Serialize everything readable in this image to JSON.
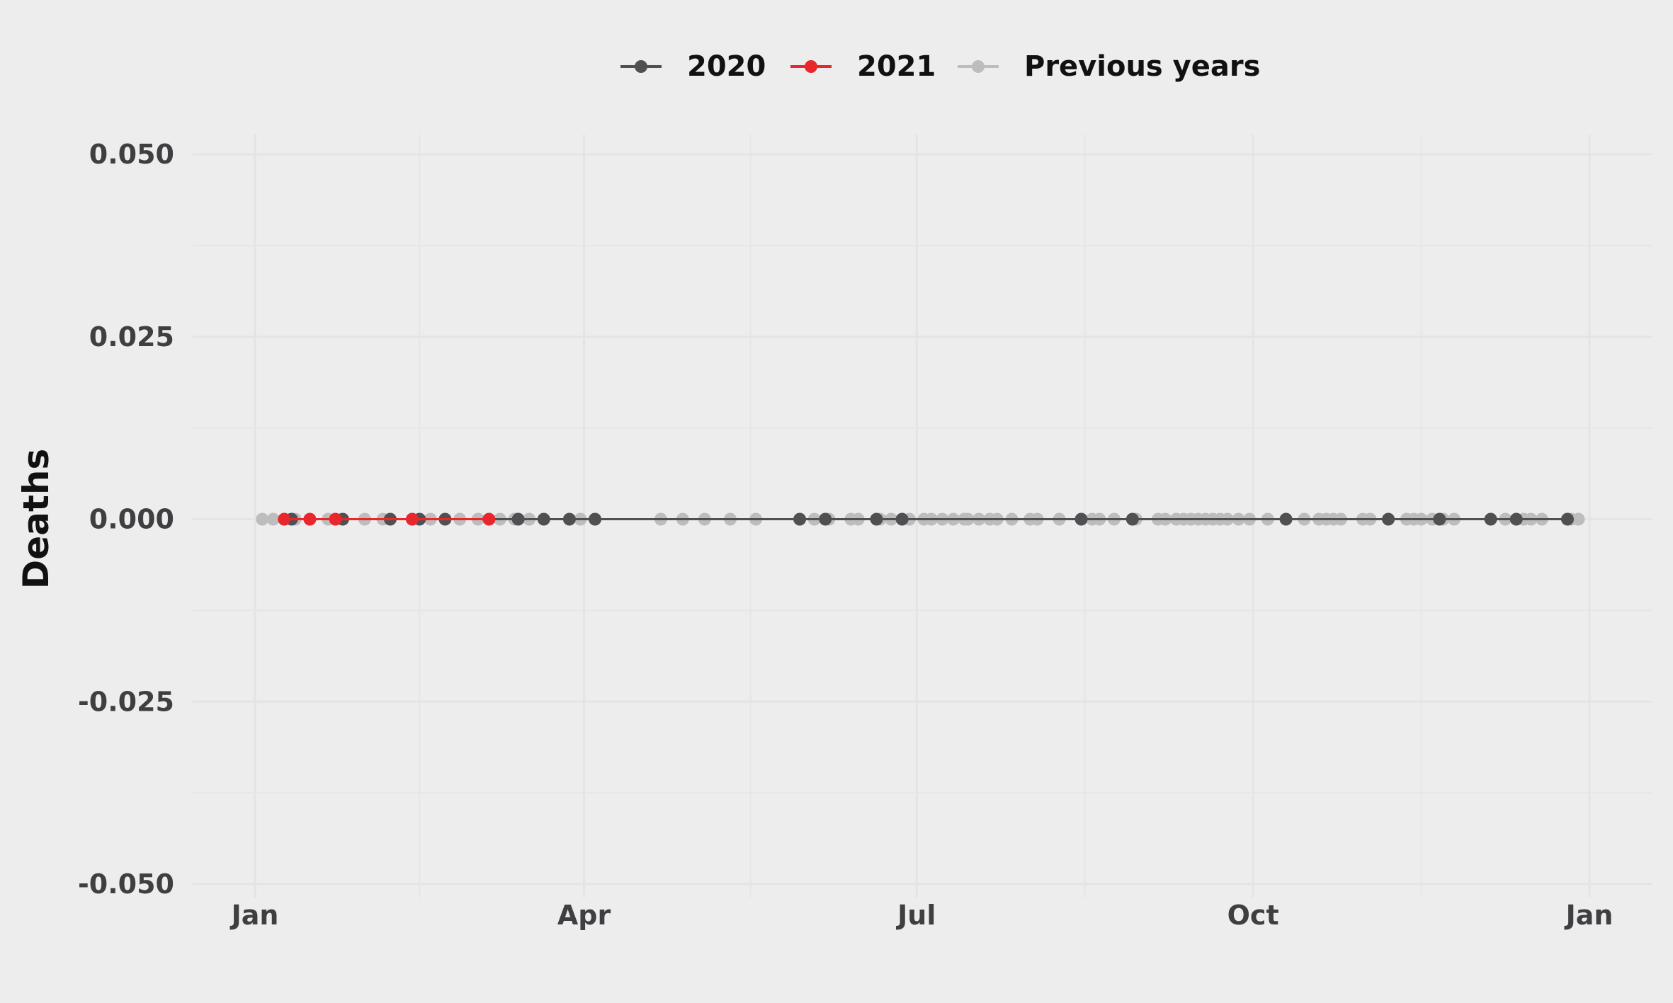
{
  "chart_data": {
    "type": "line",
    "title": "",
    "xlabel": "",
    "ylabel": "Deaths",
    "x_unit": "day of year",
    "xlim": [
      1,
      366
    ],
    "ylim": [
      -0.05,
      0.05
    ],
    "x_ticks": [
      {
        "label": "Jan",
        "day": 1
      },
      {
        "label": "Apr",
        "day": 91
      },
      {
        "label": "Jul",
        "day": 182
      },
      {
        "label": "Oct",
        "day": 274
      },
      {
        "label": "Jan",
        "day": 366
      }
    ],
    "y_ticks": [
      {
        "label": "0.050",
        "value": 0.05
      },
      {
        "label": "0.025",
        "value": 0.025
      },
      {
        "label": "0.000",
        "value": 0
      },
      {
        "label": "-0.025",
        "value": -0.025
      },
      {
        "label": "-0.050",
        "value": -0.05
      }
    ],
    "legend": {
      "placement": "top"
    },
    "grid": true,
    "series": [
      {
        "name": "Previous years",
        "color": "#bdbdbe",
        "x": [
          3,
          6,
          9,
          12,
          21,
          31,
          36,
          44,
          49,
          57,
          62,
          68,
          72,
          76,
          90,
          94,
          112,
          118,
          124,
          131,
          138,
          150,
          154,
          158,
          164,
          166,
          172,
          175,
          180,
          184,
          186,
          189,
          192,
          195,
          196,
          199,
          202,
          204,
          208,
          213,
          215,
          221,
          227,
          230,
          232,
          236,
          242,
          248,
          250,
          253,
          255,
          257,
          259,
          261,
          263,
          265,
          267,
          270,
          273,
          278,
          288,
          292,
          294,
          296,
          298,
          304,
          306,
          316,
          318,
          320,
          323,
          326,
          329,
          343,
          348,
          350,
          353,
          361,
          363
        ],
        "y": [
          0,
          0,
          0,
          0,
          0,
          0,
          0,
          0,
          0,
          0,
          0,
          0,
          0,
          0,
          0,
          0,
          0,
          0,
          0,
          0,
          0,
          0,
          0,
          0,
          0,
          0,
          0,
          0,
          0,
          0,
          0,
          0,
          0,
          0,
          0,
          0,
          0,
          0,
          0,
          0,
          0,
          0,
          0,
          0,
          0,
          0,
          0,
          0,
          0,
          0,
          0,
          0,
          0,
          0,
          0,
          0,
          0,
          0,
          0,
          0,
          0,
          0,
          0,
          0,
          0,
          0,
          0,
          0,
          0,
          0,
          0,
          0,
          0,
          0,
          0,
          0,
          0,
          0,
          0
        ]
      },
      {
        "name": "2020",
        "color": "#505052",
        "x": [
          11,
          25,
          38,
          46,
          53,
          73,
          80,
          87,
          94,
          150,
          157,
          171,
          178,
          227,
          241,
          283,
          311,
          325,
          339,
          346,
          360
        ],
        "y": [
          0,
          0,
          0,
          0,
          0,
          0,
          0,
          0,
          0,
          0,
          0,
          0,
          0,
          0,
          0,
          0,
          0,
          0,
          0,
          0,
          0
        ]
      },
      {
        "name": "2021",
        "color": "#e8262b",
        "x": [
          9,
          16,
          23,
          44,
          65
        ],
        "y": [
          0,
          0,
          0,
          0,
          0
        ]
      }
    ]
  }
}
